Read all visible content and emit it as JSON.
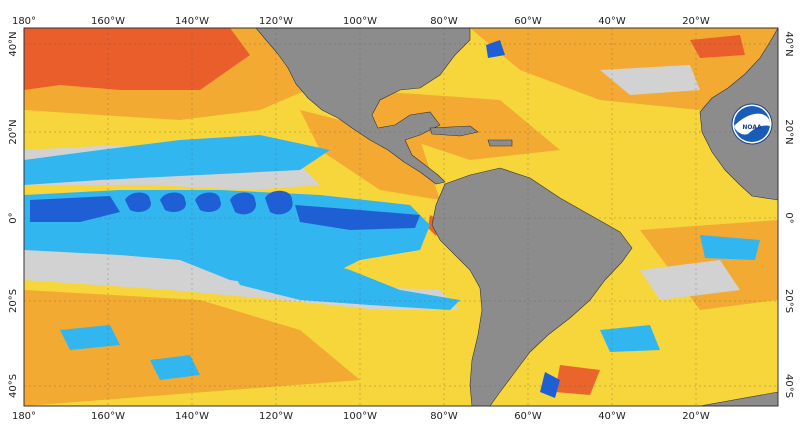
{
  "map": {
    "projection": "equirectangular",
    "lon_range": [
      -180,
      0
    ],
    "lat_range": [
      -45,
      45
    ],
    "gridlines": true,
    "top_axis_labels": [
      "180°",
      "160°W",
      "140°W",
      "120°W",
      "100°W",
      "80°W",
      "60°W",
      "40°W",
      "20°W"
    ],
    "bottom_axis_labels": [
      "180°",
      "160°W",
      "140°W",
      "120°W",
      "100°W",
      "80°W",
      "60°W",
      "40°W",
      "20°W"
    ],
    "left_axis_labels": [
      "40°N",
      "20°N",
      "0°",
      "20°S",
      "40°S"
    ],
    "right_axis_labels": [
      "40°N",
      "20°N",
      "0°",
      "20°S",
      "40°S"
    ],
    "colors": {
      "land": "#8c8c8c",
      "neutral": "#d2d2d2",
      "warm_light": "#f6d63a",
      "warm": "#f3a532",
      "hot": "#e8512a",
      "cool": "#31b6f0",
      "cold": "#1f5fd6",
      "frame": "#333333"
    },
    "logo": {
      "icon": "noaa-logo-icon",
      "text": "NOAA"
    }
  }
}
